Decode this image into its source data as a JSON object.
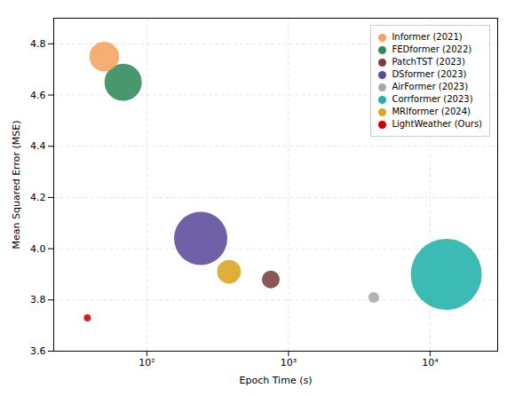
{
  "chart_data": {
    "type": "scatter",
    "xlabel": "Epoch Time (s)",
    "ylabel": "Mean Squared Error (MSE)",
    "log": "x",
    "grid": true,
    "legend": "upper right",
    "xlim": [
      22,
      30000
    ],
    "ylim": [
      3.6,
      4.9
    ],
    "xticks": [
      {
        "value": 100,
        "label": "10²"
      },
      {
        "value": 1000,
        "label": "10³"
      },
      {
        "value": 10000,
        "label": "10⁴"
      }
    ],
    "yticks": [
      3.6,
      3.8,
      {
        "value": 4.0,
        "label": "4.0"
      },
      4.2,
      4.4,
      4.6,
      4.8
    ],
    "series": [
      {
        "name": "Informer (2021)",
        "color": "#F4A460",
        "x": [
          50
        ],
        "values": [
          4.75
        ],
        "size": [
          1400
        ]
      },
      {
        "name": "FEDformer (2022)",
        "color": "#2E8B57",
        "x": [
          68
        ],
        "values": [
          4.65
        ],
        "size": [
          2200
        ]
      },
      {
        "name": "PatchTST (2023)",
        "color": "#7B3F3F",
        "x": [
          750
        ],
        "values": [
          3.88
        ],
        "size": [
          500
        ]
      },
      {
        "name": "DSformer (2023)",
        "color": "#5B4A9C",
        "x": [
          240
        ],
        "values": [
          4.04
        ],
        "size": [
          4500
        ]
      },
      {
        "name": "AirFormer (2023)",
        "color": "#A9A9A9",
        "x": [
          4000
        ],
        "values": [
          3.81
        ],
        "size": [
          180
        ]
      },
      {
        "name": "Corrformer (2023)",
        "color": "#20B2AA",
        "x": [
          13000
        ],
        "values": [
          3.9
        ],
        "size": [
          8000
        ]
      },
      {
        "name": "MRIformer (2024)",
        "color": "#DAA520",
        "x": [
          380
        ],
        "values": [
          3.91
        ],
        "size": [
          900
        ]
      },
      {
        "name": "LightWeather (Ours)",
        "color": "#CC0000",
        "x": [
          38
        ],
        "values": [
          3.73
        ],
        "size": [
          80
        ]
      }
    ]
  }
}
